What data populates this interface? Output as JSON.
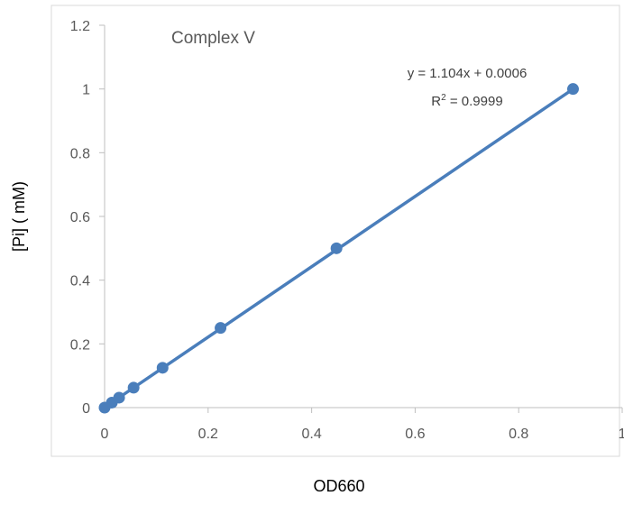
{
  "chart_data": {
    "type": "scatter",
    "title": "Complex V",
    "xlabel": "OD660",
    "ylabel": "[Pi] ( mM)",
    "xlim": [
      0,
      1
    ],
    "ylim": [
      0,
      1.2
    ],
    "xticks": [
      0,
      0.2,
      0.4,
      0.6,
      0.8,
      1
    ],
    "xtick_labels": [
      "0",
      "0.2",
      "0.4",
      "0.6",
      "0.8",
      "1"
    ],
    "yticks": [
      0,
      0.2,
      0.4,
      0.6,
      0.8,
      1,
      1.2
    ],
    "ytick_labels": [
      "0",
      "0.2",
      "0.4",
      "0.6",
      "0.8",
      "1",
      "1.2"
    ],
    "grid": false,
    "series": [
      {
        "x": [
          0.0,
          0.014,
          0.028,
          0.056,
          0.112,
          0.224,
          0.448,
          0.905
        ],
        "y": [
          0.0,
          0.0156,
          0.03125,
          0.0625,
          0.125,
          0.25,
          0.5,
          1.0
        ],
        "color": "#4a7ebb"
      }
    ],
    "trendline": {
      "slope": 1.104,
      "intercept": 0.0006,
      "x_range": [
        0,
        0.905
      ],
      "color": "#4a7ebb"
    },
    "annotations": {
      "equation": "y = 1.104x + 0.0006",
      "r2_prefix": "R",
      "r2_sup": "2",
      "r2_value": " = 0.9999"
    },
    "colors": {
      "axis": "#bfbfbf",
      "tick_text": "#595959",
      "label_text": "#000000"
    }
  }
}
